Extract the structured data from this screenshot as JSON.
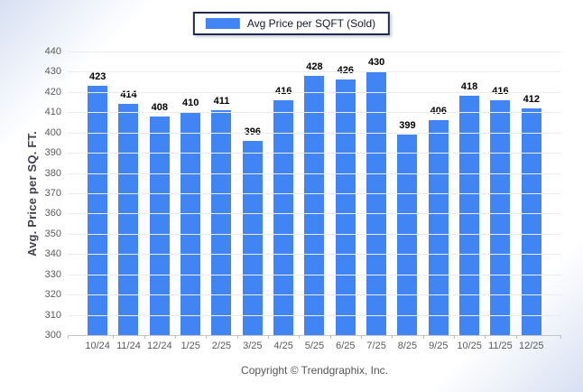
{
  "legend": {
    "label": "Avg Price per SQFT (Sold)",
    "swatch_color": "#4184f3"
  },
  "chart_data": {
    "type": "bar",
    "title": "",
    "series_name": "Avg Price per SQFT (Sold)",
    "categories": [
      "10/24",
      "11/24",
      "12/24",
      "1/25",
      "2/25",
      "3/25",
      "4/25",
      "5/25",
      "6/25",
      "7/25",
      "8/25",
      "9/25",
      "10/25",
      "11/25",
      "12/25"
    ],
    "values": [
      423,
      414,
      408,
      410,
      411,
      396,
      416,
      428,
      426,
      430,
      399,
      406,
      418,
      416,
      412
    ],
    "xlabel": "",
    "ylabel": "Avg. Price per SQ. FT.",
    "ylim": [
      300,
      440
    ],
    "ytick_step": 10,
    "bar_color": "#4184f3",
    "grid": "horizontal",
    "legend_position": "top-center",
    "value_labels_shown": true
  },
  "footer": {
    "copyright": "Copyright © Trendgraphix, Inc."
  }
}
